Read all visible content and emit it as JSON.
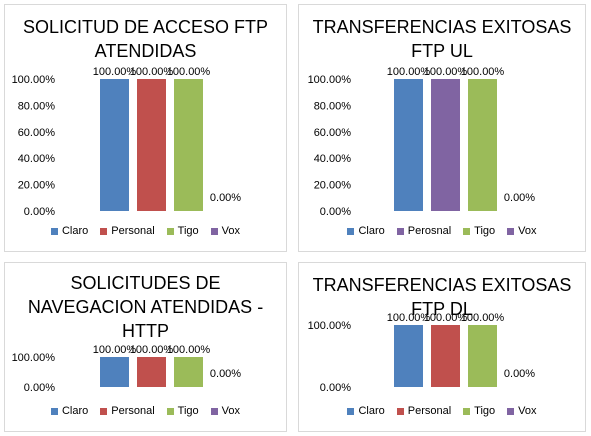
{
  "colors": {
    "Claro": "#4f81bd",
    "Personal": "#c0504d",
    "Tigo": "#9bbb59",
    "Vox": "#8064a2"
  },
  "chart_data": [
    {
      "type": "bar",
      "title_lines": [
        "SOLICITUD DE ACCESO FTP",
        "ATENDIDAS"
      ],
      "categories": [
        "Claro",
        "Personal",
        "Tigo",
        "Vox"
      ],
      "legend": [
        "Claro",
        "Personal",
        "Tigo",
        "Vox"
      ],
      "values": [
        100,
        100,
        100,
        0
      ],
      "data_labels": [
        "100.00%",
        "100.00%",
        "100.00%",
        "0.00%"
      ],
      "yticks": [
        "100.00%",
        "80.00%",
        "60.00%",
        "40.00%",
        "20.00%",
        "0.00%"
      ],
      "ylim": [
        0,
        100
      ],
      "legend_position": "bottom"
    },
    {
      "type": "bar",
      "title_lines": [
        "TRANSFERENCIAS EXITOSAS",
        "FTP UL"
      ],
      "categories": [
        "Claro",
        "Perosnal",
        "Tigo",
        "Vox"
      ],
      "legend": [
        "Claro",
        "Perosnal",
        "Tigo",
        "Vox"
      ],
      "values": [
        100,
        100,
        100,
        0
      ],
      "data_labels": [
        "100.00%",
        "100.00%",
        "100.00%",
        "0.00%"
      ],
      "yticks": [
        "100.00%",
        "80.00%",
        "60.00%",
        "40.00%",
        "20.00%",
        "0.00%"
      ],
      "ylim": [
        0,
        100
      ],
      "legend_position": "bottom"
    },
    {
      "type": "bar",
      "title_lines": [
        "SOLICITUDES DE",
        "NAVEGACION ATENDIDAS -",
        "HTTP"
      ],
      "categories": [
        "Claro",
        "Personal",
        "Tigo",
        "Vox"
      ],
      "legend": [
        "Claro",
        "Personal",
        "Tigo",
        "Vox"
      ],
      "values": [
        100,
        100,
        100,
        0
      ],
      "data_labels": [
        "100.00%",
        "100.00%",
        "100.00%",
        "0.00%"
      ],
      "yticks": [
        "100.00%",
        "0.00%"
      ],
      "ylim": [
        0,
        100
      ],
      "legend_position": "bottom"
    },
    {
      "type": "bar",
      "title_lines": [
        "TRANSFERENCIAS EXITOSAS",
        "FTP DL"
      ],
      "categories": [
        "Claro",
        "Personal",
        "Tigo",
        "Vox"
      ],
      "legend": [
        "Claro",
        "Personal",
        "Tigo",
        "Vox"
      ],
      "values": [
        100,
        100,
        100,
        0
      ],
      "data_labels": [
        "100.00%",
        "100.00%",
        "100.00%",
        "0.00%"
      ],
      "yticks": [
        "100.00%",
        "0.00%"
      ],
      "ylim": [
        0,
        100
      ],
      "legend_position": "bottom"
    }
  ]
}
